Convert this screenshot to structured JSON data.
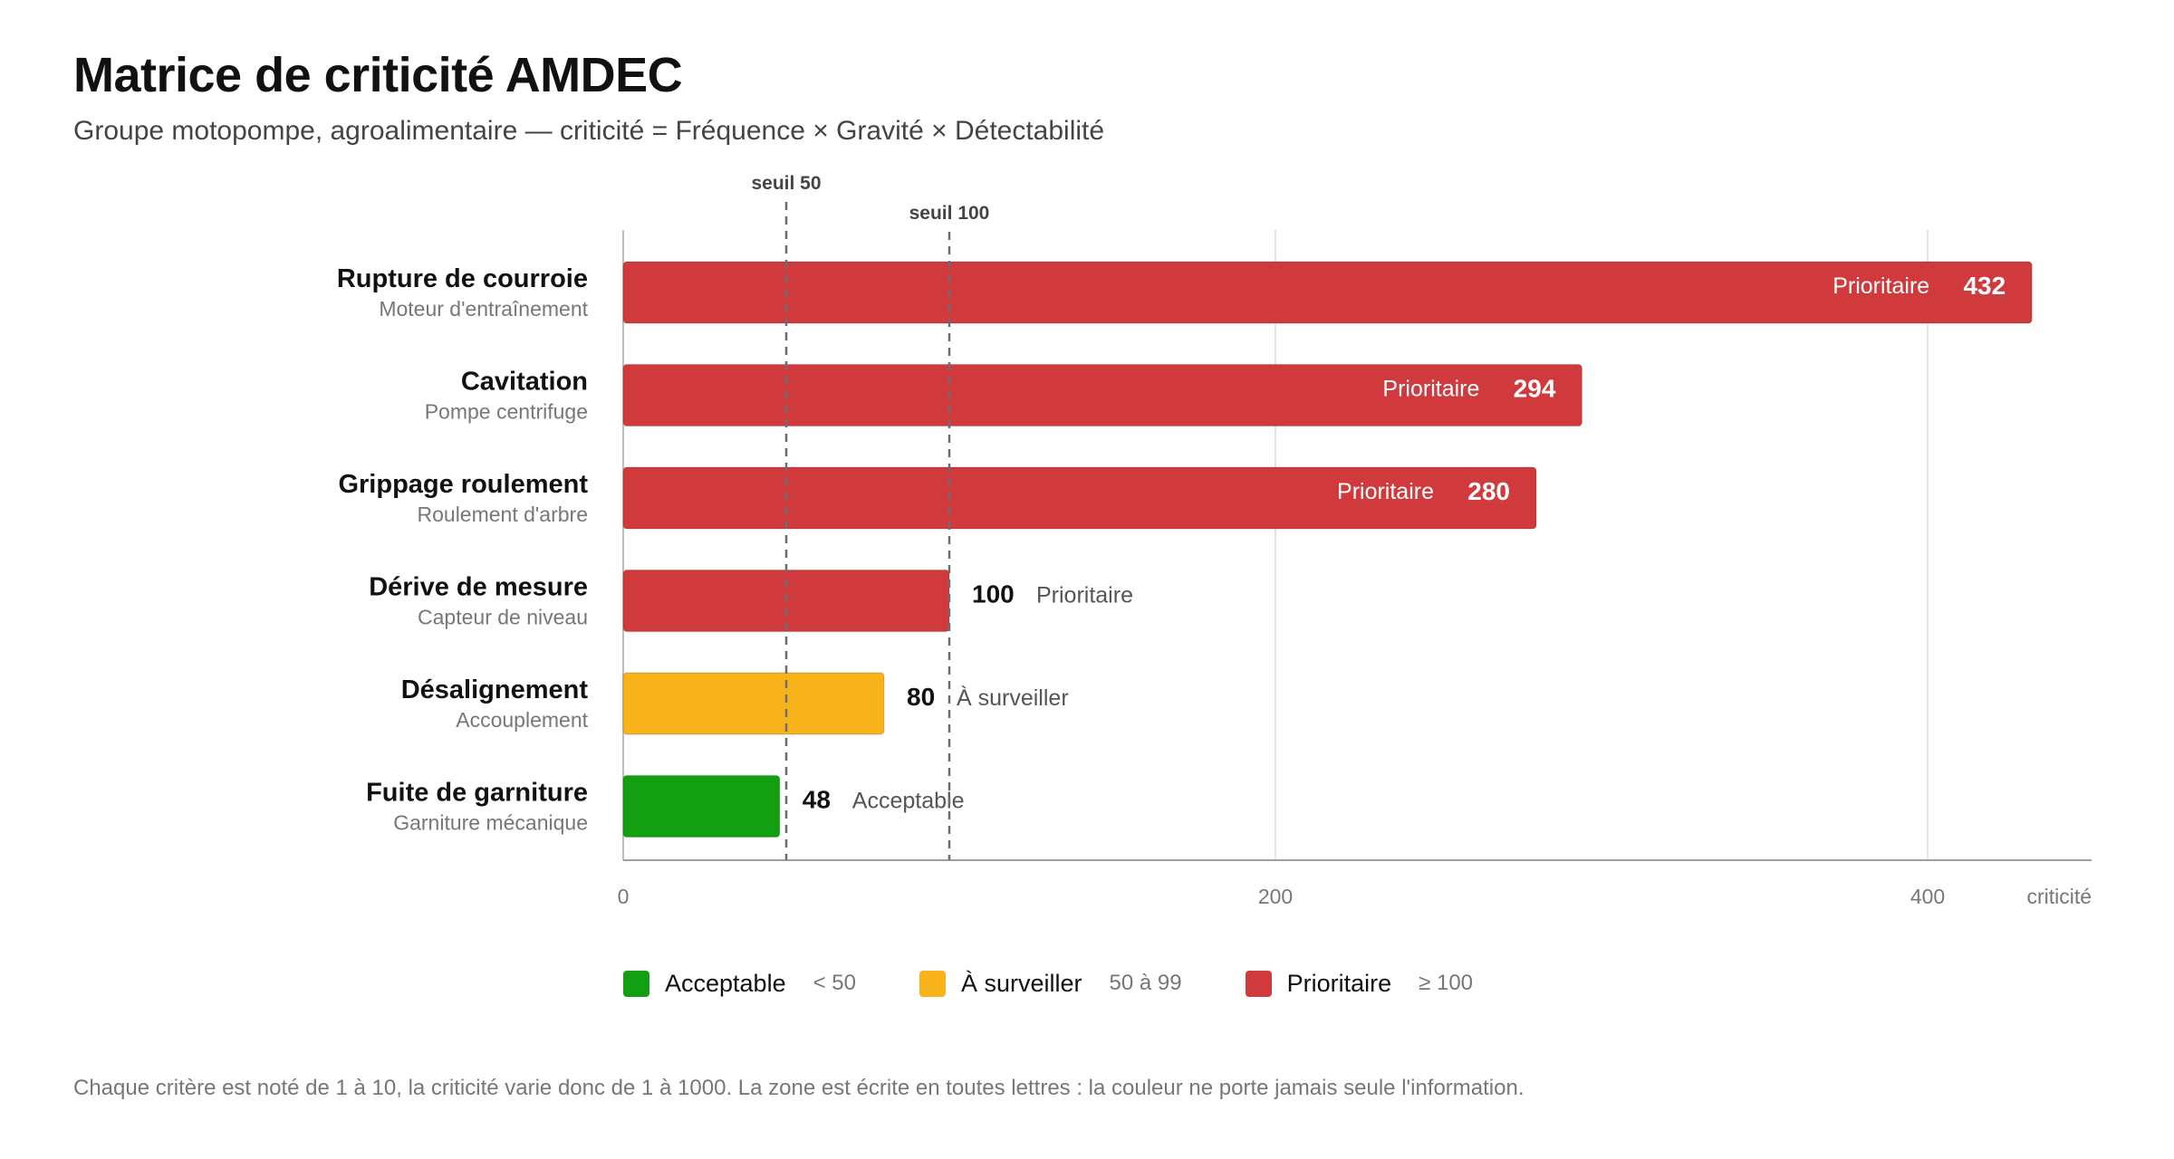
{
  "title": "Matrice de criticité AMDEC",
  "subtitle": "Groupe motopompe, agroalimentaire — criticité = Fréquence × Gravité × Détectabilité",
  "footnote": "Chaque critère est noté de 1 à 10, la criticité varie donc de 1 à 1000. La zone est écrite en toutes lettres : la couleur ne porte jamais seule l'information.",
  "colors": {
    "acceptable": "#12a012",
    "surveiller": "#f8b21a",
    "prioritaire": "#d03a3c"
  },
  "legend": [
    {
      "label": "Acceptable",
      "range": "< 50",
      "color_key": "acceptable"
    },
    {
      "label": "À surveiller",
      "range": "50 à 99",
      "color_key": "surveiller"
    },
    {
      "label": "Prioritaire",
      "range": "≥ 100",
      "color_key": "prioritaire"
    }
  ],
  "chart_data": {
    "type": "bar",
    "orientation": "horizontal",
    "xlabel": "criticité",
    "xlim": [
      0,
      450
    ],
    "xticks": [
      0,
      200,
      400
    ],
    "grid": true,
    "legend_position": "bottom",
    "thresholds": [
      {
        "value": 50,
        "label": "seuil 50"
      },
      {
        "value": 100,
        "label": "seuil 100"
      }
    ],
    "categories": [
      {
        "name": "Rupture de courroie",
        "sub": "Moteur d'entraînement",
        "value": 432,
        "zone": "Prioritaire",
        "color_key": "prioritaire"
      },
      {
        "name": "Cavitation",
        "sub": "Pompe centrifuge",
        "value": 294,
        "zone": "Prioritaire",
        "color_key": "prioritaire"
      },
      {
        "name": "Grippage roulement",
        "sub": "Roulement d'arbre",
        "value": 280,
        "zone": "Prioritaire",
        "color_key": "prioritaire"
      },
      {
        "name": "Dérive de mesure",
        "sub": "Capteur de niveau",
        "value": 100,
        "zone": "Prioritaire",
        "color_key": "prioritaire"
      },
      {
        "name": "Désalignement",
        "sub": "Accouplement",
        "value": 80,
        "zone": "À surveiller",
        "color_key": "surveiller"
      },
      {
        "name": "Fuite de garniture",
        "sub": "Garniture mécanique",
        "value": 48,
        "zone": "Acceptable",
        "color_key": "acceptable"
      }
    ]
  }
}
